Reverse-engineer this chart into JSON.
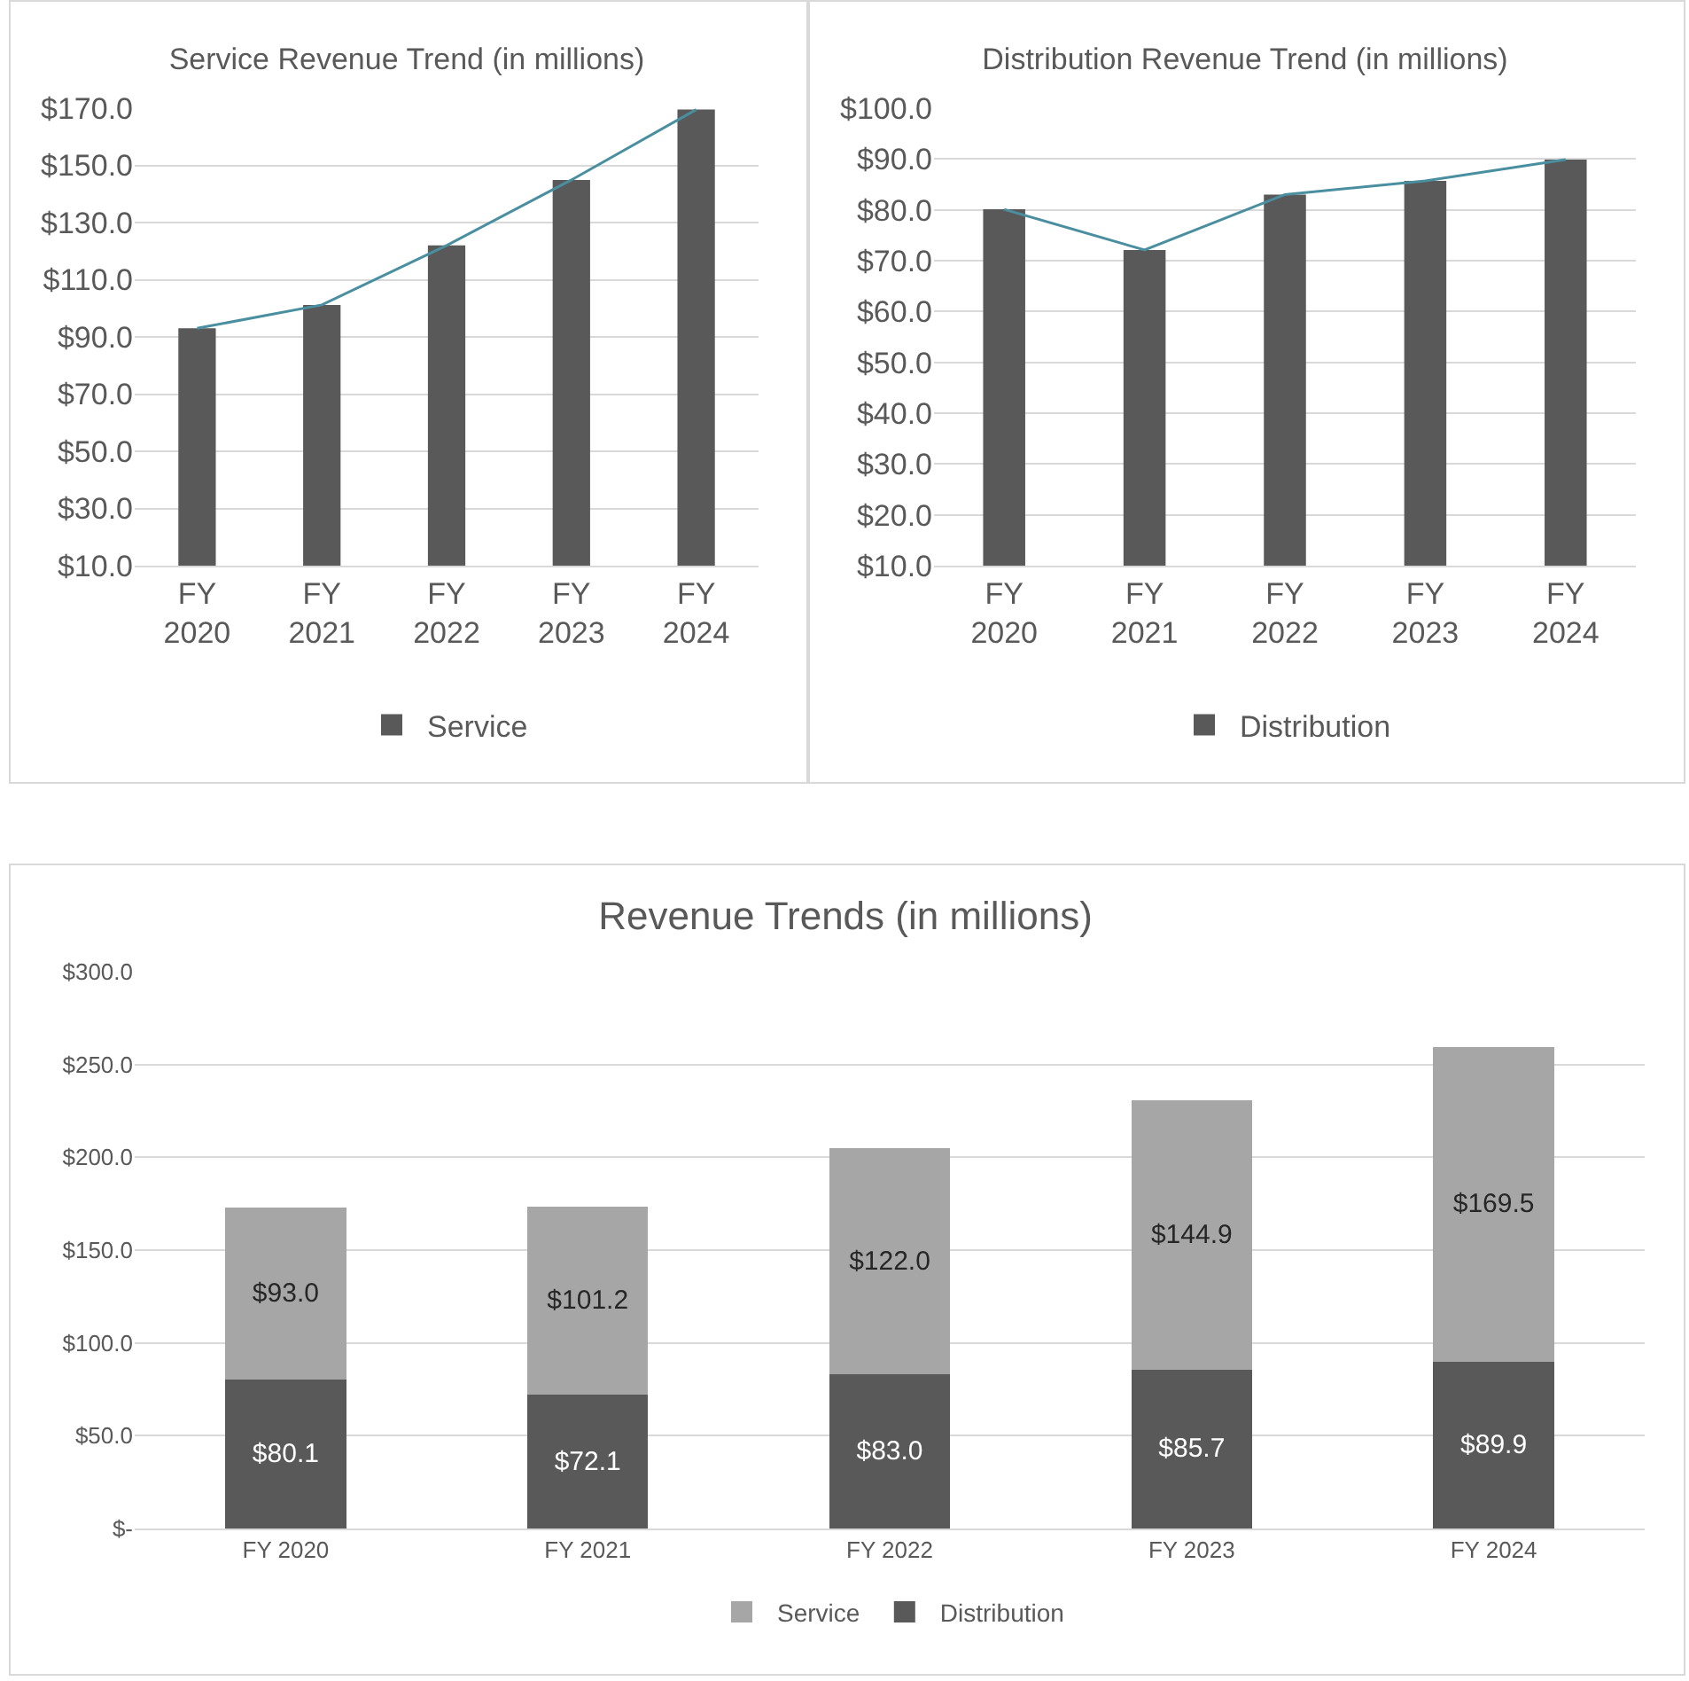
{
  "chart_data": [
    {
      "type": "bar",
      "title": "Service Revenue Trend (in millions)",
      "categories": [
        "FY 2020",
        "FY 2021",
        "FY 2022",
        "FY 2023",
        "FY 2024"
      ],
      "series": [
        {
          "name": "Service",
          "color": "#595959",
          "values": [
            93.0,
            101.2,
            122.0,
            144.9,
            169.5
          ]
        },
        {
          "type": "line",
          "color": "#4a8fa0",
          "values": [
            93.0,
            101.2,
            122.0,
            144.9,
            169.5
          ]
        }
      ],
      "ylim": [
        10,
        170
      ],
      "yticks": [
        {
          "value": 10,
          "label": "$10.0"
        },
        {
          "value": 30,
          "label": "$30.0"
        },
        {
          "value": 50,
          "label": "$50.0"
        },
        {
          "value": 70,
          "label": "$70.0"
        },
        {
          "value": 90,
          "label": "$90.0"
        },
        {
          "value": 110,
          "label": "$110.0"
        },
        {
          "value": 130,
          "label": "$130.0"
        },
        {
          "value": 150,
          "label": "$150.0"
        },
        {
          "value": 170,
          "label": "$170.0"
        }
      ],
      "grid": "y",
      "legend": "bottom",
      "marker": "none"
    },
    {
      "type": "bar",
      "title": "Distribution Revenue Trend (in millions)",
      "categories": [
        "FY 2020",
        "FY 2021",
        "FY 2022",
        "FY 2023",
        "FY 2024"
      ],
      "series": [
        {
          "name": "Distribution",
          "color": "#595959",
          "values": [
            80.1,
            72.1,
            83.0,
            85.7,
            89.9
          ]
        },
        {
          "type": "line",
          "color": "#4a8fa0",
          "values": [
            80.1,
            72.1,
            83.0,
            85.7,
            89.9
          ]
        }
      ],
      "ylim": [
        10,
        100
      ],
      "yticks": [
        {
          "value": 10,
          "label": "$10.0"
        },
        {
          "value": 20,
          "label": "$20.0"
        },
        {
          "value": 30,
          "label": "$30.0"
        },
        {
          "value": 40,
          "label": "$40.0"
        },
        {
          "value": 50,
          "label": "$50.0"
        },
        {
          "value": 60,
          "label": "$60.0"
        },
        {
          "value": 70,
          "label": "$70.0"
        },
        {
          "value": 80,
          "label": "$80.0"
        },
        {
          "value": 90,
          "label": "$90.0"
        },
        {
          "value": 100,
          "label": "$100.0"
        }
      ],
      "grid": "y",
      "legend": "bottom",
      "marker": "none"
    },
    {
      "type": "bar",
      "title": "Revenue Trends (in millions)",
      "categories": [
        "FY 2020",
        "FY 2021",
        "FY 2022",
        "FY 2023",
        "FY 2024"
      ],
      "stacked": true,
      "series": [
        {
          "name": "Distribution",
          "color": "#595959",
          "values": [
            80.1,
            72.1,
            83.0,
            85.7,
            89.9
          ],
          "value_labels": [
            "$80.1",
            "$72.1",
            "$83.0",
            "$85.7",
            "$89.9"
          ]
        },
        {
          "name": "Service",
          "color": "#a6a6a6",
          "values": [
            93.0,
            101.2,
            122.0,
            144.9,
            169.5
          ],
          "value_labels": [
            "$93.0",
            "$101.2",
            "$122.0",
            "$144.9",
            "$169.5"
          ]
        }
      ],
      "ylim": [
        0,
        300
      ],
      "yticks": [
        {
          "value": 0,
          "label": "$-"
        },
        {
          "value": 50,
          "label": "$50.0"
        },
        {
          "value": 100,
          "label": "$100.0"
        },
        {
          "value": 150,
          "label": "$150.0"
        },
        {
          "value": 200,
          "label": "$200.0"
        },
        {
          "value": 250,
          "label": "$250.0"
        },
        {
          "value": 300,
          "label": "$300.0"
        }
      ],
      "grid": "y",
      "legend": "bottom"
    }
  ]
}
